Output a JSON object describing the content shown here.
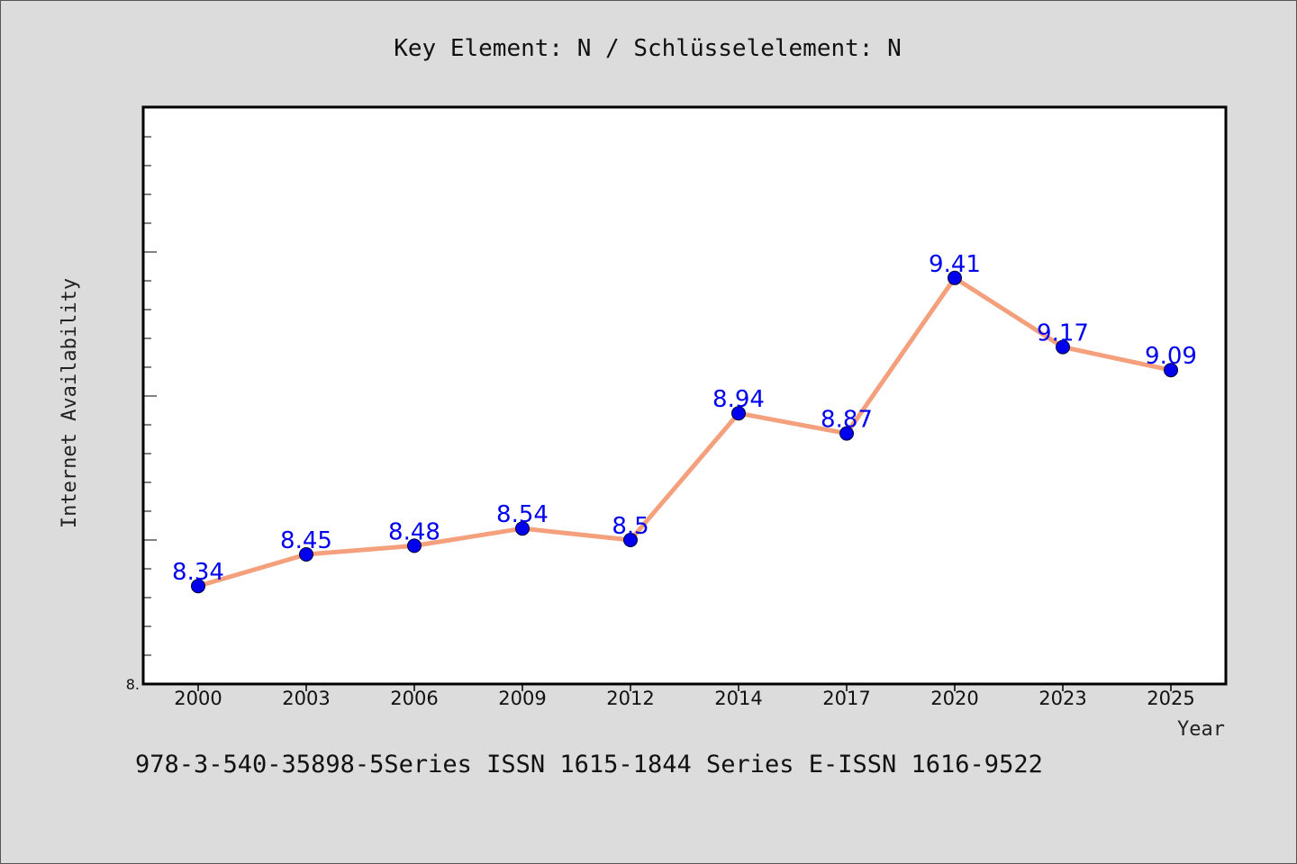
{
  "footer": "978-3-540-35898-5Series ISSN 1615-1844 Series E-ISSN 1616-9522",
  "chart_data": {
    "type": "line",
    "title": "Key Element: N / Schlüsselelement: N",
    "xlabel": "Year",
    "ylabel": "Internet Availability",
    "categories": [
      "2000",
      "2003",
      "2006",
      "2009",
      "2012",
      "2014",
      "2017",
      "2020",
      "2023",
      "2025"
    ],
    "series": [
      {
        "values": [
          8.34,
          8.45,
          8.48,
          8.54,
          8.5,
          8.94,
          8.87,
          9.41,
          9.17,
          9.09
        ],
        "data_labels": [
          "8.34",
          "8.45",
          "8.48",
          "8.54",
          "8.5",
          "8.94",
          "8.87",
          "9.41",
          "9.17",
          "9.09"
        ],
        "line_color": "#f4a07c",
        "marker_color": "#0000ee"
      }
    ],
    "y_tick_label": "8.",
    "ylim": [
      8.0,
      10.0
    ],
    "grid": false,
    "plot_background": "#ffffff",
    "page_background": "#dcdcdc"
  }
}
